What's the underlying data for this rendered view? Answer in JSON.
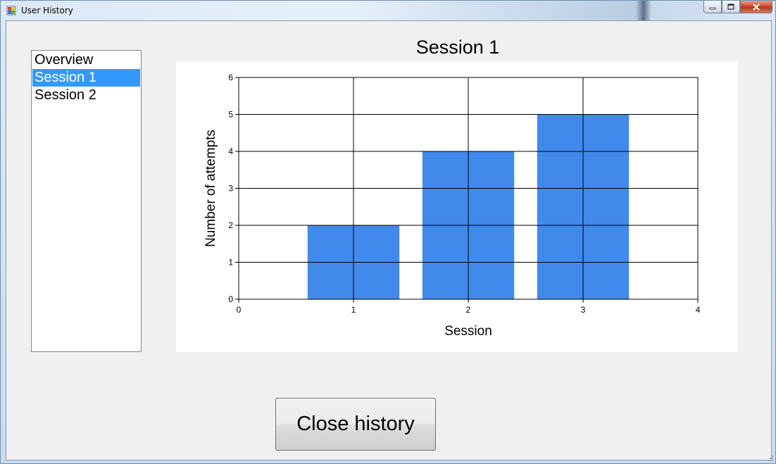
{
  "window": {
    "title": "User History"
  },
  "sidebar": {
    "items": [
      {
        "label": "Overview",
        "selected": false
      },
      {
        "label": "Session 1",
        "selected": true
      },
      {
        "label": "Session 2",
        "selected": false
      }
    ]
  },
  "colors": {
    "bar": "#418aec",
    "selection": "#3399ff",
    "grid": "#000000"
  },
  "chart_data": {
    "type": "bar",
    "title": "Session 1",
    "xlabel": "Session",
    "ylabel": "Number of attempts",
    "x": [
      1,
      2,
      3
    ],
    "values": [
      2,
      4,
      5
    ],
    "xlim": [
      0,
      4
    ],
    "ylim": [
      0,
      6
    ],
    "xticks": [
      "0",
      "1",
      "2",
      "3",
      "4"
    ],
    "yticks": [
      "0",
      "1",
      "2",
      "3",
      "4",
      "5",
      "6"
    ],
    "grid": true,
    "legend": "none"
  },
  "buttons": {
    "close_label": "Close history"
  }
}
